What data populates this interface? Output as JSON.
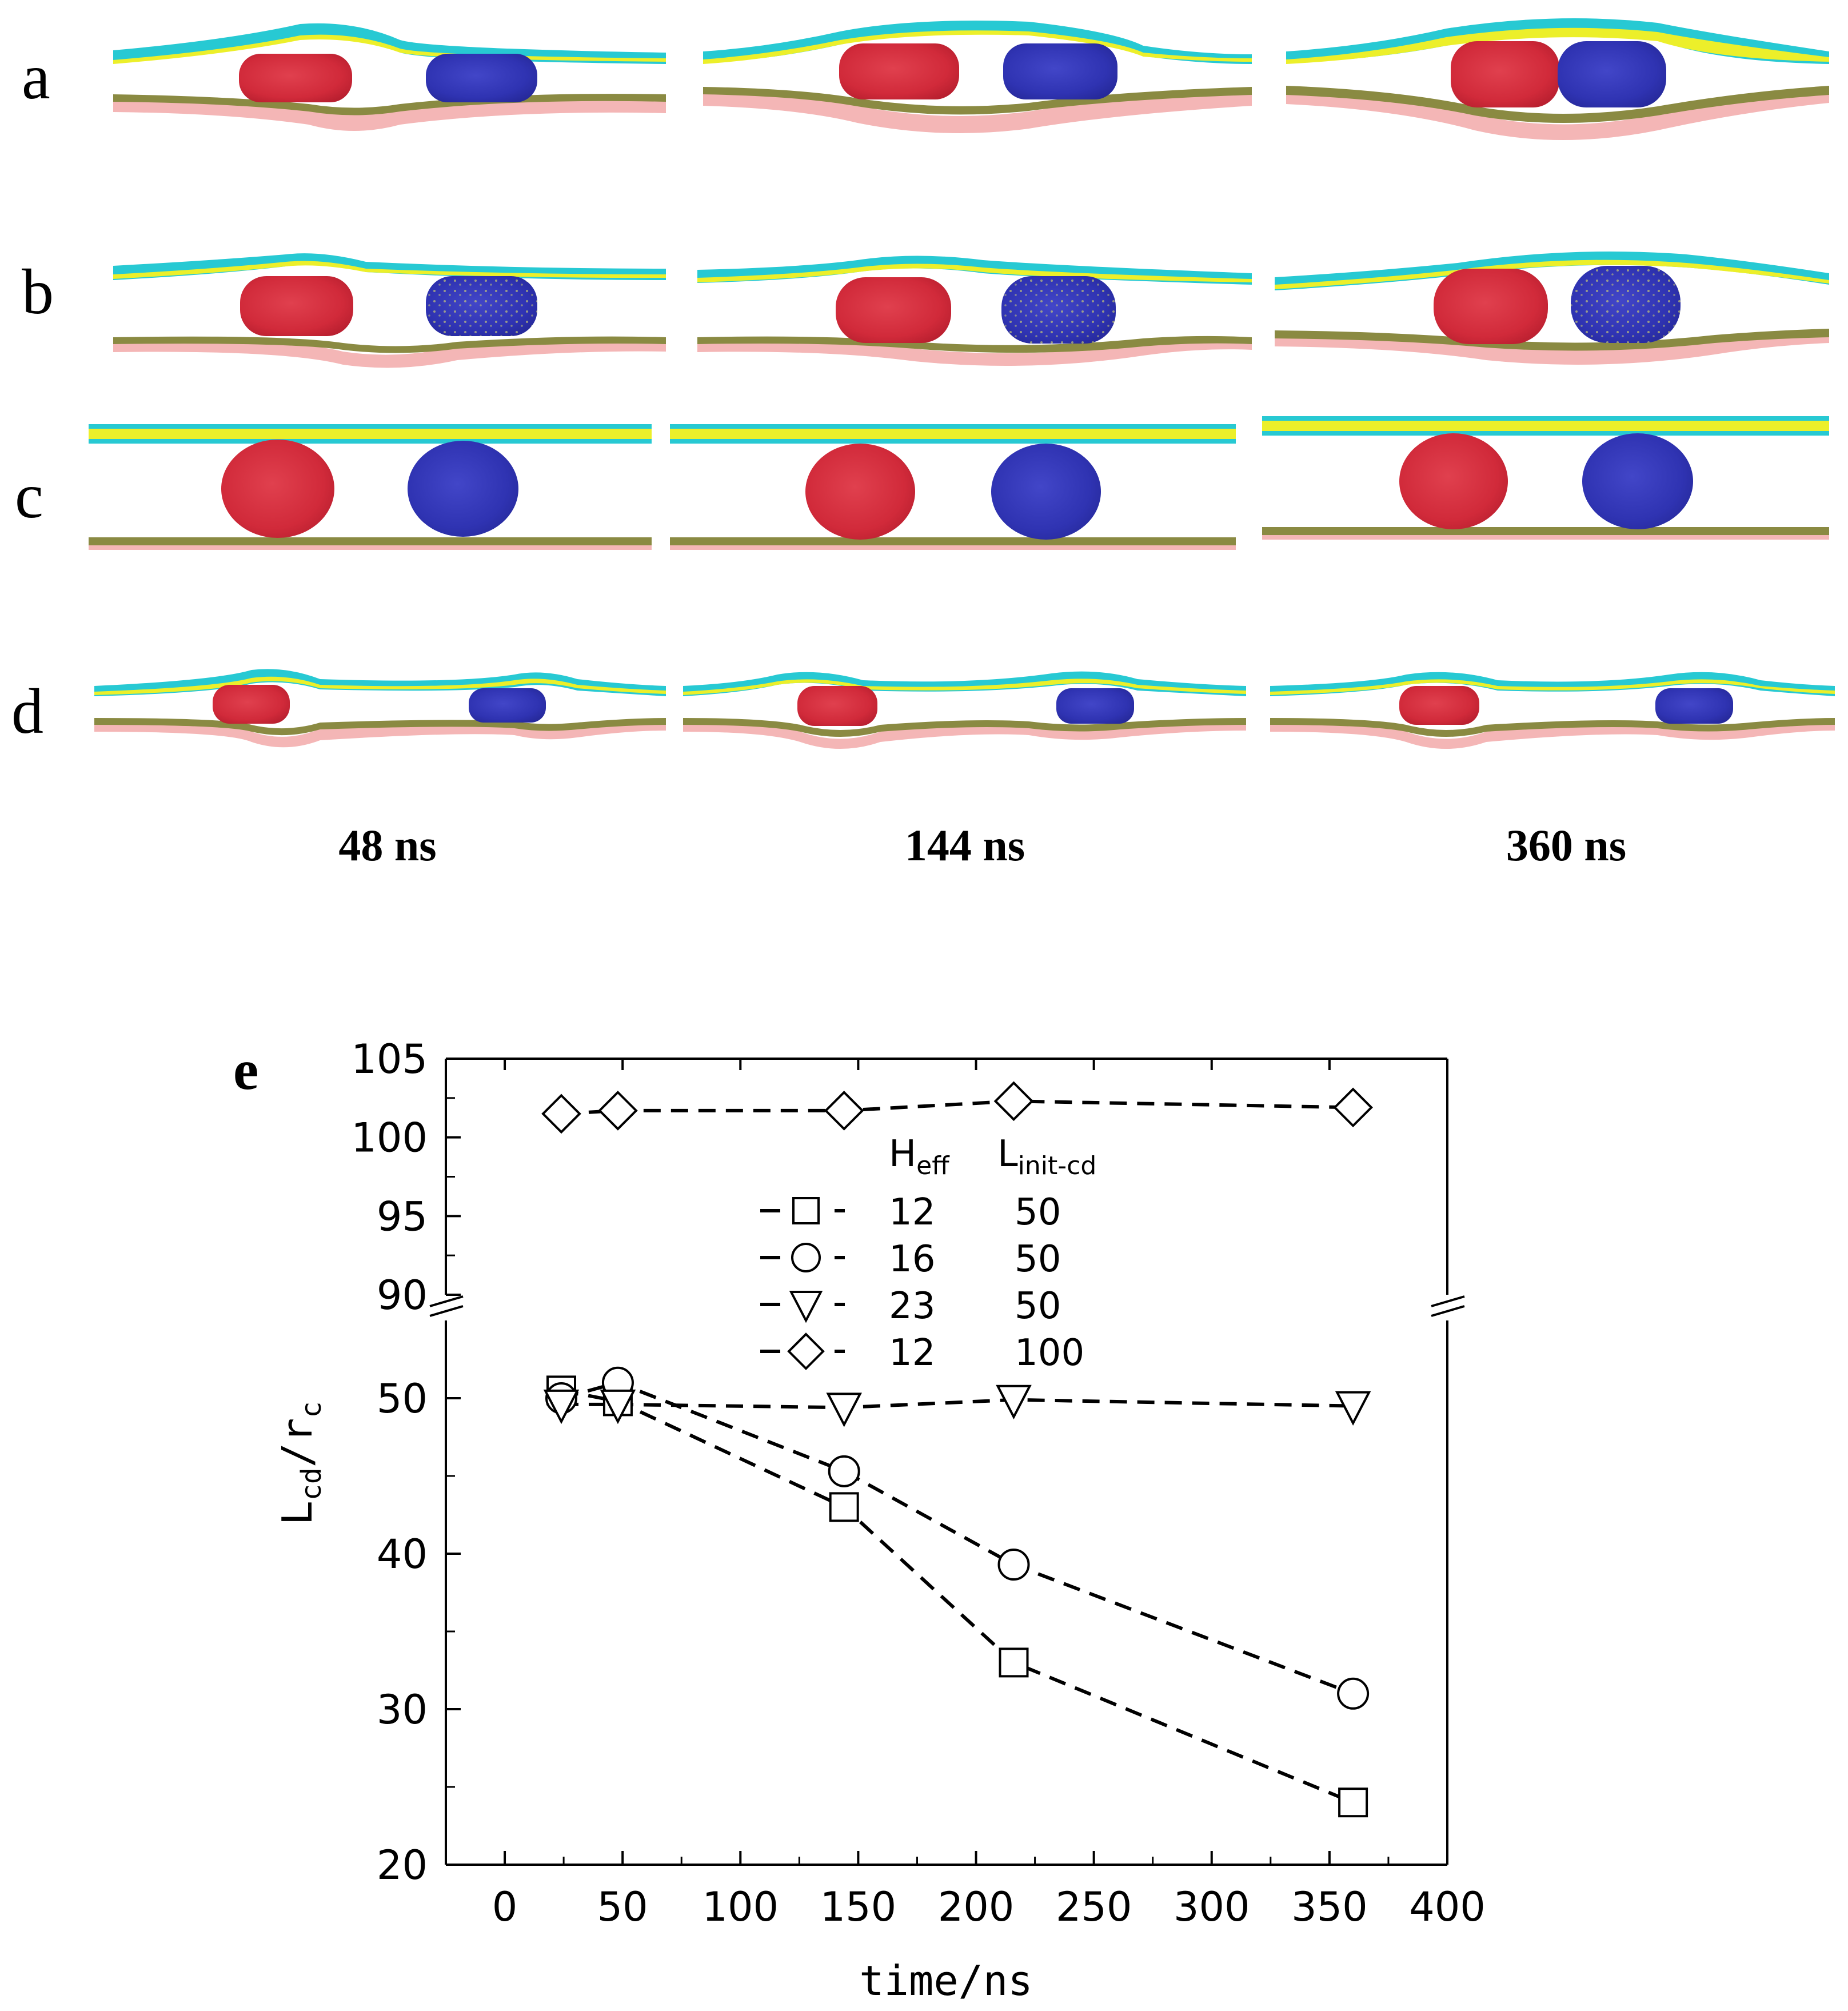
{
  "snapshots": {
    "row_labels": [
      "a",
      "b",
      "c",
      "d"
    ],
    "time_labels": [
      "48 ns",
      "144 ns",
      "360 ns"
    ],
    "colors": {
      "membrane_top_outer": "#27c9d3",
      "membrane_top_inner": "#ecef2a",
      "membrane_bottom": "#8a8a42",
      "membrane_bottom_shadow": "#f4b6b6",
      "particle_left": "#d72d3c",
      "particle_right": "#3236b8"
    }
  },
  "chart": {
    "panel_label": "e",
    "xlabel": "time/ns",
    "ylabel": "L",
    "ylabel_sub": "cd",
    "ylabel_mid": "/r",
    "ylabel_sub2": "c",
    "xticks": [
      "0",
      "50",
      "100",
      "150",
      "200",
      "250",
      "300",
      "350",
      "400"
    ],
    "yticks_lower": [
      "20",
      "30",
      "40",
      "50"
    ],
    "yticks_upper": [
      "90",
      "95",
      "100",
      "105"
    ],
    "legend_header": {
      "h": "H",
      "h_sub": "eff",
      "l": "L",
      "l_sub": "init-cd"
    },
    "legend_rows": [
      {
        "h": "12",
        "l": "50"
      },
      {
        "h": "16",
        "l": "50"
      },
      {
        "h": "23",
        "l": "50"
      },
      {
        "h": "12",
        "l": "100"
      }
    ]
  },
  "chart_data": {
    "type": "scatter",
    "title": "",
    "xlabel": "time/ns",
    "ylabel": "Lcd/rc",
    "xlim": [
      -25,
      400
    ],
    "ylim_lower": [
      20,
      55
    ],
    "ylim_upper": [
      90,
      105
    ],
    "broken_y_axis": true,
    "legend_columns": [
      "Heff",
      "Linit-cd"
    ],
    "series": [
      {
        "name": "Heff 12, Linit-cd 50",
        "marker": "square",
        "x": [
          24,
          48,
          144,
          216,
          360
        ],
        "y": [
          50.5,
          49.8,
          43.0,
          33.0,
          24.0
        ]
      },
      {
        "name": "Heff 16, Linit-cd 50",
        "marker": "circle",
        "x": [
          24,
          48,
          144,
          216,
          360
        ],
        "y": [
          50.0,
          51.0,
          45.3,
          39.3,
          31.0
        ]
      },
      {
        "name": "Heff 23, Linit-cd 50",
        "marker": "triangle-down",
        "x": [
          24,
          48,
          144,
          216,
          360
        ],
        "y": [
          49.6,
          49.6,
          49.4,
          49.9,
          49.5
        ]
      },
      {
        "name": "Heff 12, Linit-cd 100",
        "marker": "diamond",
        "x": [
          24,
          48,
          144,
          216,
          360
        ],
        "y": [
          101.5,
          101.7,
          101.7,
          102.3,
          101.9
        ]
      }
    ]
  }
}
